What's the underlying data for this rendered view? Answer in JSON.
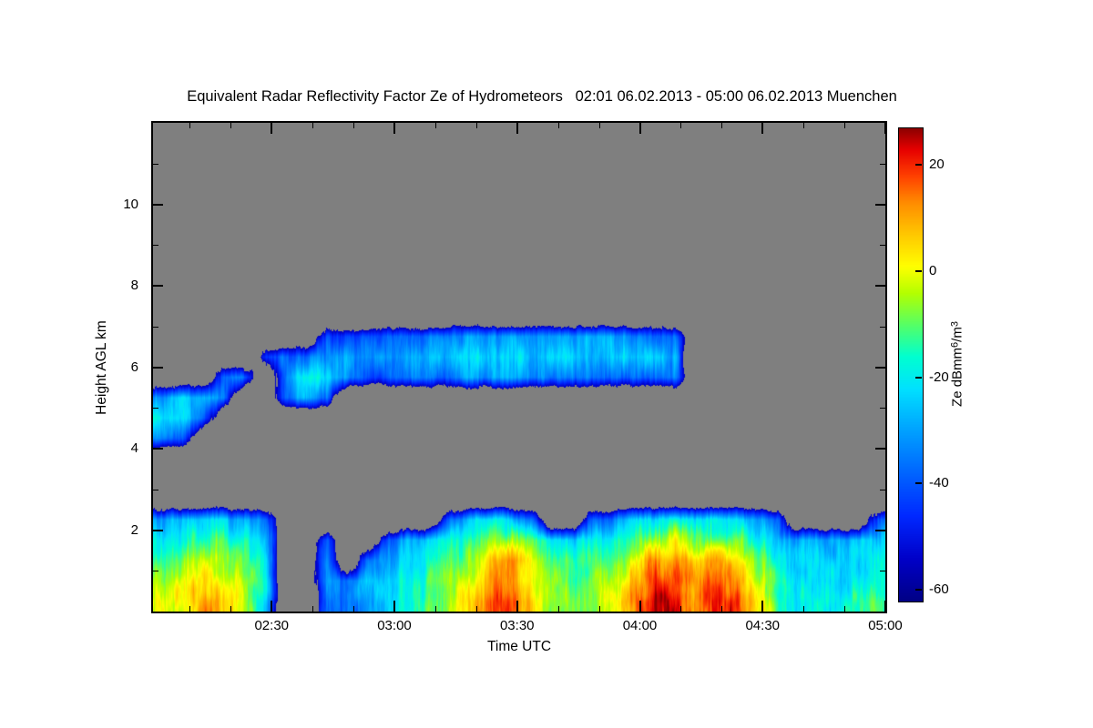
{
  "title": "Equivalent Radar Reflectivity Factor Ze of Hydrometeors   02:01 06.02.2013 - 05:00 06.02.2013 Muenchen",
  "station": "Muenchen",
  "time_span_label": "02:01 06.02.2013 - 05:00 06.02.2013",
  "plot": {
    "background_color": "#7f7f7f",
    "frame_color": "#000000"
  },
  "axes": {
    "x": {
      "label": "Time UTC",
      "t0_min": 121,
      "t1_min": 300,
      "start_label": "02:01",
      "end_label": "05:00",
      "major_ticks": [
        {
          "minute": 150,
          "label": "02:30"
        },
        {
          "minute": 180,
          "label": "03:00"
        },
        {
          "minute": 210,
          "label": "03:30"
        },
        {
          "minute": 240,
          "label": "04:00"
        },
        {
          "minute": 270,
          "label": "04:30"
        },
        {
          "minute": 300,
          "label": "05:00"
        }
      ],
      "minor_ticks_min": [
        130,
        140,
        160,
        170,
        190,
        200,
        220,
        230,
        250,
        260,
        280,
        290
      ]
    },
    "y": {
      "label": "Height AGL km",
      "min_km": 0,
      "max_km": 12,
      "major_ticks": [
        {
          "km": 2,
          "label": "2"
        },
        {
          "km": 4,
          "label": "4"
        },
        {
          "km": 6,
          "label": "6"
        },
        {
          "km": 8,
          "label": "8"
        },
        {
          "km": 10,
          "label": "10"
        }
      ],
      "minor_ticks_km": [
        1,
        3,
        5,
        7,
        9,
        11
      ]
    }
  },
  "colorbar": {
    "label_parts": {
      "pre": "Ze dBmm",
      "sup1": "6",
      "mid": "/m",
      "sup2": "3"
    },
    "units": "Ze dBmm^6/m^3",
    "value_min": -62,
    "value_max": 27,
    "ticks": [
      {
        "v": 20,
        "label": "20"
      },
      {
        "v": 0,
        "label": "0"
      },
      {
        "v": -20,
        "label": "-20"
      },
      {
        "v": -40,
        "label": "-40"
      },
      {
        "v": -60,
        "label": "-60"
      }
    ],
    "gradient_stops": [
      [
        -62,
        "#000085"
      ],
      [
        -54,
        "#0000c8"
      ],
      [
        -46,
        "#0028ff"
      ],
      [
        -38,
        "#0064ff"
      ],
      [
        -30,
        "#00a0ff"
      ],
      [
        -22,
        "#00e1ff"
      ],
      [
        -16,
        "#00ffd0"
      ],
      [
        -10,
        "#55ff66"
      ],
      [
        -4,
        "#b4ff00"
      ],
      [
        1,
        "#ffff00"
      ],
      [
        7,
        "#ffc800"
      ],
      [
        13,
        "#ff8c00"
      ],
      [
        18,
        "#ff4000"
      ],
      [
        23,
        "#e60000"
      ],
      [
        27,
        "#8b0000"
      ]
    ]
  },
  "chart_data": {
    "type": "heatmap",
    "title": "Equivalent Radar Reflectivity Factor Ze of Hydrometeors",
    "subtitle": "02:01 06.02.2013 - 05:00 06.02.2013 Muenchen",
    "xlabel": "Time UTC",
    "ylabel": "Height AGL km",
    "x_range": [
      "02:01",
      "05:00"
    ],
    "y_range_km": [
      0,
      12
    ],
    "value_units": "Ze dBmm^6/m^3",
    "value_range_db": [
      -62,
      27
    ],
    "no_echo_color": "#7f7f7f",
    "features": [
      {
        "name": "mid-level cloud layer",
        "time": "02:25-04:10",
        "height_km": [
          5.5,
          6.9
        ],
        "ze_db": [
          -42,
          -20
        ]
      },
      {
        "name": "lower cloud streak",
        "time": "02:15-02:55",
        "height_km": [
          5.0,
          5.9
        ],
        "ze_db": [
          -36,
          -18
        ]
      },
      {
        "name": "left-edge mid patch",
        "time": "02:01-02:15",
        "height_km": [
          4.2,
          5.4
        ],
        "ze_db": [
          -36,
          -18
        ]
      },
      {
        "name": "low-level precipitation layer",
        "time": "02:01-05:00",
        "height_km": [
          0,
          2.4
        ],
        "ze_db": [
          -36,
          24
        ],
        "notes": "intense cores near 03:25 and 04:00-04:25 reaching ~20-24 dB; weaker cyan-green echo after 04:30"
      }
    ],
    "grid": {
      "t0_min": 121,
      "time_step_min": 5,
      "columns": 36,
      "height_top_km": 7.5,
      "height_step_km": 0.5,
      "value_scale": {
        ".": null,
        "1": -55,
        "2": -48,
        "3": -42,
        "4": -36,
        "5": -30,
        "6": -24,
        "7": -18,
        "8": -12,
        "9": -6,
        "a": 0,
        "b": 6,
        "c": 12,
        "d": 18,
        "e": 24
      },
      "rows_top_to_bottom": [
        "....................................",
        "........333444455555555444..........",
        ".....344555555666666656665..........",
        "...44.57653344455554444444..........",
        "5654..454...........................",
        "764.................................",
        "43..................................",
        "....................................",
        "....................................",
        "....................................",
        "566654........46764..4466767654....4",
        "778876..4..45678998767789a8997655566",
        "89a987..5.456789bca8888accbcb9766667",
        "9aba97..5466789acca9899bddcdca876677",
        "aacb96..4456789bddb999aceecedb877788"
      ]
    }
  }
}
